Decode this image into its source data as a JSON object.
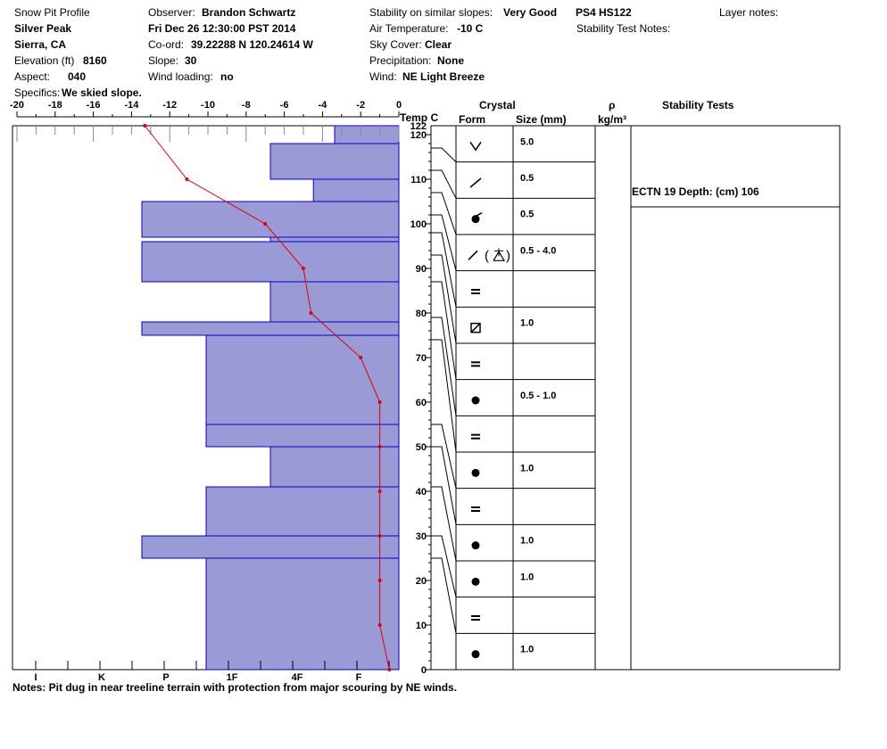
{
  "header": {
    "title": "Snow Pit Profile",
    "location": "Silver Peak",
    "region": "Sierra, CA",
    "elevation_label": "Elevation (ft)",
    "elevation": "8160",
    "aspect_label": "Aspect:",
    "aspect": "040",
    "specifics_label": "Specifics:",
    "specifics": "We skied slope.",
    "observer_label": "Observer:",
    "observer": "Brandon Schwartz",
    "datetime": "Fri Dec 26 12:30:00 PST 2014",
    "coord_label": "Co-ord:",
    "coord": "39.22288 N 120.24614 W",
    "slope_label": "Slope:",
    "slope": "30",
    "wind_loading_label": "Wind loading:",
    "wind_loading": "no",
    "stability_label": "Stability on similar slopes:",
    "stability": "Very Good",
    "air_temp_label": "Air Temperature:",
    "air_temp": "-10 C",
    "sky_label": "Sky Cover:",
    "sky": "Clear",
    "precip_label": "Precipitation:",
    "precip": "None",
    "wind_label": "Wind:",
    "wind": "NE Light Breeze",
    "ps": "PS4 HS122",
    "stability_test_notes_label": "Stability Test Notes:",
    "layer_notes_label": "Layer notes:"
  },
  "columns": {
    "temp": "Temp C",
    "crystal": "Crystal",
    "form": "Form",
    "size": "Size (mm)",
    "rho": "ρ",
    "density_unit": "kg/m³",
    "stability_tests": "Stability Tests"
  },
  "notes": "Notes:  Pit dug in near treeline terrain with protection from major scouring by NE winds.",
  "stability_test": "ECTN 19   Depth: (cm) 106",
  "colors": {
    "hardness_fill": "#9a9ad6",
    "hardness_edge": "#0000cc",
    "temp_line": "#e00000"
  },
  "chart_data": {
    "type": "snow-profile",
    "height_axis": {
      "min": 0,
      "max": 122,
      "ticks": [
        0,
        10,
        20,
        30,
        40,
        50,
        60,
        70,
        80,
        90,
        100,
        110,
        120
      ],
      "top_label": "122"
    },
    "temp_axis": {
      "min": -20,
      "max": 0,
      "ticks": [
        -20,
        -18,
        -16,
        -14,
        -12,
        -10,
        -8,
        -6,
        -4,
        -2,
        0
      ]
    },
    "hardness_axis": {
      "labels": [
        "I",
        "K",
        "P",
        "1F",
        "4F",
        "F"
      ],
      "values": [
        5,
        3,
        2,
        1,
        0.33,
        -0.33
      ]
    },
    "hardness_layers": [
      {
        "bottom": 118,
        "top": 122,
        "hardness": 0
      },
      {
        "bottom": 110,
        "top": 118,
        "hardness": 1
      },
      {
        "bottom": 105,
        "top": 110,
        "hardness": 0.33
      },
      {
        "bottom": 97,
        "top": 105,
        "hardness": 3
      },
      {
        "bottom": 96,
        "top": 97,
        "hardness": 1
      },
      {
        "bottom": 87,
        "top": 96,
        "hardness": 3
      },
      {
        "bottom": 78,
        "top": 87,
        "hardness": 1
      },
      {
        "bottom": 75,
        "top": 78,
        "hardness": 3
      },
      {
        "bottom": 55,
        "top": 75,
        "hardness": 2
      },
      {
        "bottom": 50,
        "top": 55,
        "hardness": 2
      },
      {
        "bottom": 41,
        "top": 50,
        "hardness": 1
      },
      {
        "bottom": 30,
        "top": 41,
        "hardness": 2
      },
      {
        "bottom": 25,
        "top": 30,
        "hardness": 3
      },
      {
        "bottom": 0,
        "top": 25,
        "hardness": 2
      }
    ],
    "temperature_profile": [
      {
        "depth": 122,
        "temp": -13.3
      },
      {
        "depth": 110,
        "temp": -11.1
      },
      {
        "depth": 100,
        "temp": -7.0
      },
      {
        "depth": 90,
        "temp": -5.0
      },
      {
        "depth": 80,
        "temp": -4.6
      },
      {
        "depth": 70,
        "temp": -2.0
      },
      {
        "depth": 60,
        "temp": -1.0
      },
      {
        "depth": 50,
        "temp": -1.0
      },
      {
        "depth": 40,
        "temp": -1.0
      },
      {
        "depth": 30,
        "temp": -1.0
      },
      {
        "depth": 20,
        "temp": -1.0
      },
      {
        "depth": 10,
        "temp": -1.0
      },
      {
        "depth": 0,
        "temp": -0.5
      }
    ],
    "crystal_layers": [
      {
        "bottom": 117,
        "top": 122,
        "form": "depth-hoar",
        "size": "5.0"
      },
      {
        "bottom": 112,
        "top": 117,
        "form": "decomposing",
        "size": "0.5"
      },
      {
        "bottom": 107,
        "top": 112,
        "form": "rounded-faceting",
        "size": "0.5"
      },
      {
        "bottom": 102,
        "top": 107,
        "form": "decomposing-surface-hoar",
        "size": "0.5 - 4.0"
      },
      {
        "bottom": 98,
        "top": 102,
        "form": "crust",
        "size": ""
      },
      {
        "bottom": 93,
        "top": 98,
        "form": "faceted",
        "size": "1.0"
      },
      {
        "bottom": 87,
        "top": 93,
        "form": "crust",
        "size": ""
      },
      {
        "bottom": 79,
        "top": 87,
        "form": "rounded",
        "size": "0.5 - 1.0"
      },
      {
        "bottom": 74,
        "top": 79,
        "form": "crust",
        "size": ""
      },
      {
        "bottom": 55,
        "top": 74,
        "form": "rounded",
        "size": "1.0"
      },
      {
        "bottom": 50,
        "top": 55,
        "form": "crust",
        "size": ""
      },
      {
        "bottom": 41,
        "top": 50,
        "form": "rounded",
        "size": "1.0"
      },
      {
        "bottom": 30,
        "top": 41,
        "form": "rounded",
        "size": "1.0"
      },
      {
        "bottom": 25,
        "top": 30,
        "form": "crust",
        "size": ""
      },
      {
        "bottom": 0,
        "top": 25,
        "form": "rounded",
        "size": "1.0"
      }
    ],
    "stability_test_depth": 106
  }
}
